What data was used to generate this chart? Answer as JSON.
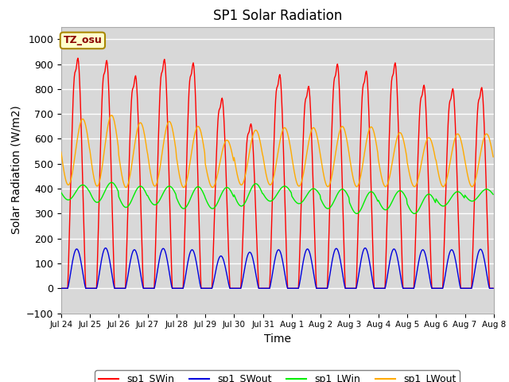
{
  "title": "SP1 Solar Radiation",
  "ylabel": "Solar Radiation (W/m2)",
  "xlabel": "Time",
  "ylim": [
    -100,
    1050
  ],
  "n_days": 15,
  "xtick_labels": [
    "Jul 24",
    "Jul 25",
    "Jul 26",
    "Jul 27",
    "Jul 28",
    "Jul 29",
    "Jul 30",
    "Jul 31",
    "Aug 1",
    "Aug 2",
    "Aug 3",
    "Aug 4",
    "Aug 5",
    "Aug 6",
    "Aug 7",
    "Aug 8"
  ],
  "colors": {
    "SWin": "#ff0000",
    "SWout": "#0000dd",
    "LWin": "#00ee00",
    "LWout": "#ffaa00"
  },
  "legend_labels": [
    "sp1_SWin",
    "sp1_SWout",
    "sp1_LWin",
    "sp1_LWout"
  ],
  "tz_label": "TZ_osu",
  "bg_color": "#d8d8d8",
  "fig_color": "#ffffff",
  "grid_color": "#ffffff",
  "title_fontsize": 12,
  "label_fontsize": 10,
  "SWin_peaks": [
    980,
    970,
    905,
    975,
    960,
    810,
    700,
    910,
    860,
    955,
    925,
    960,
    865,
    850,
    855
  ],
  "SWout_peaks": [
    158,
    162,
    155,
    160,
    155,
    130,
    145,
    155,
    158,
    160,
    162,
    158,
    155,
    155,
    157
  ],
  "LWin_base": [
    355,
    345,
    325,
    335,
    320,
    320,
    330,
    350,
    340,
    320,
    300,
    315,
    300,
    330,
    350
  ],
  "LWin_peaks": [
    415,
    425,
    410,
    410,
    408,
    405,
    420,
    410,
    400,
    398,
    388,
    392,
    378,
    388,
    398
  ],
  "LWout_base": [
    415,
    410,
    405,
    410,
    405,
    405,
    415,
    415,
    410,
    408,
    408,
    408,
    408,
    408,
    408
  ],
  "LWout_peaks": [
    680,
    695,
    665,
    670,
    650,
    595,
    635,
    645,
    645,
    650,
    648,
    625,
    605,
    620,
    620
  ]
}
